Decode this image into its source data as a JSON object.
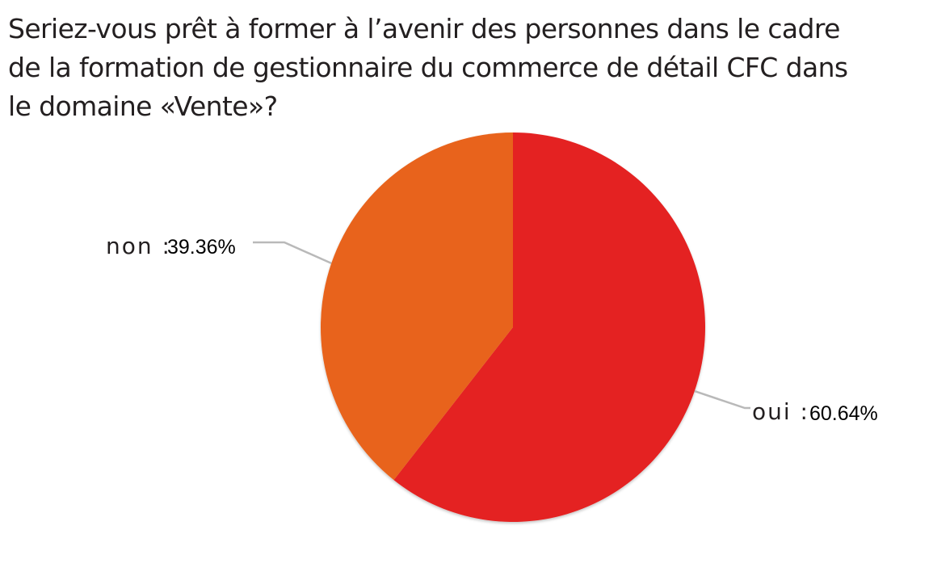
{
  "chart_data": {
    "type": "pie",
    "title_lines": [
      "Seriez-vous prêt à former à l’avenir des personnes dans le cadre",
      "de la formation de gestionnaire du commerce de détail CFC dans",
      "le domaine «Vente»?"
    ],
    "slices": [
      {
        "label": "oui",
        "value": 60.64,
        "value_text": "60.64%",
        "color": "#e42320"
      },
      {
        "label": "non",
        "value": 39.36,
        "value_text": "39.36%",
        "color": "#e8641b"
      }
    ],
    "start_angle": "12 o'clock",
    "direction": "clockwise",
    "leader_line_color": "#b9b9b9",
    "legend": "none"
  }
}
